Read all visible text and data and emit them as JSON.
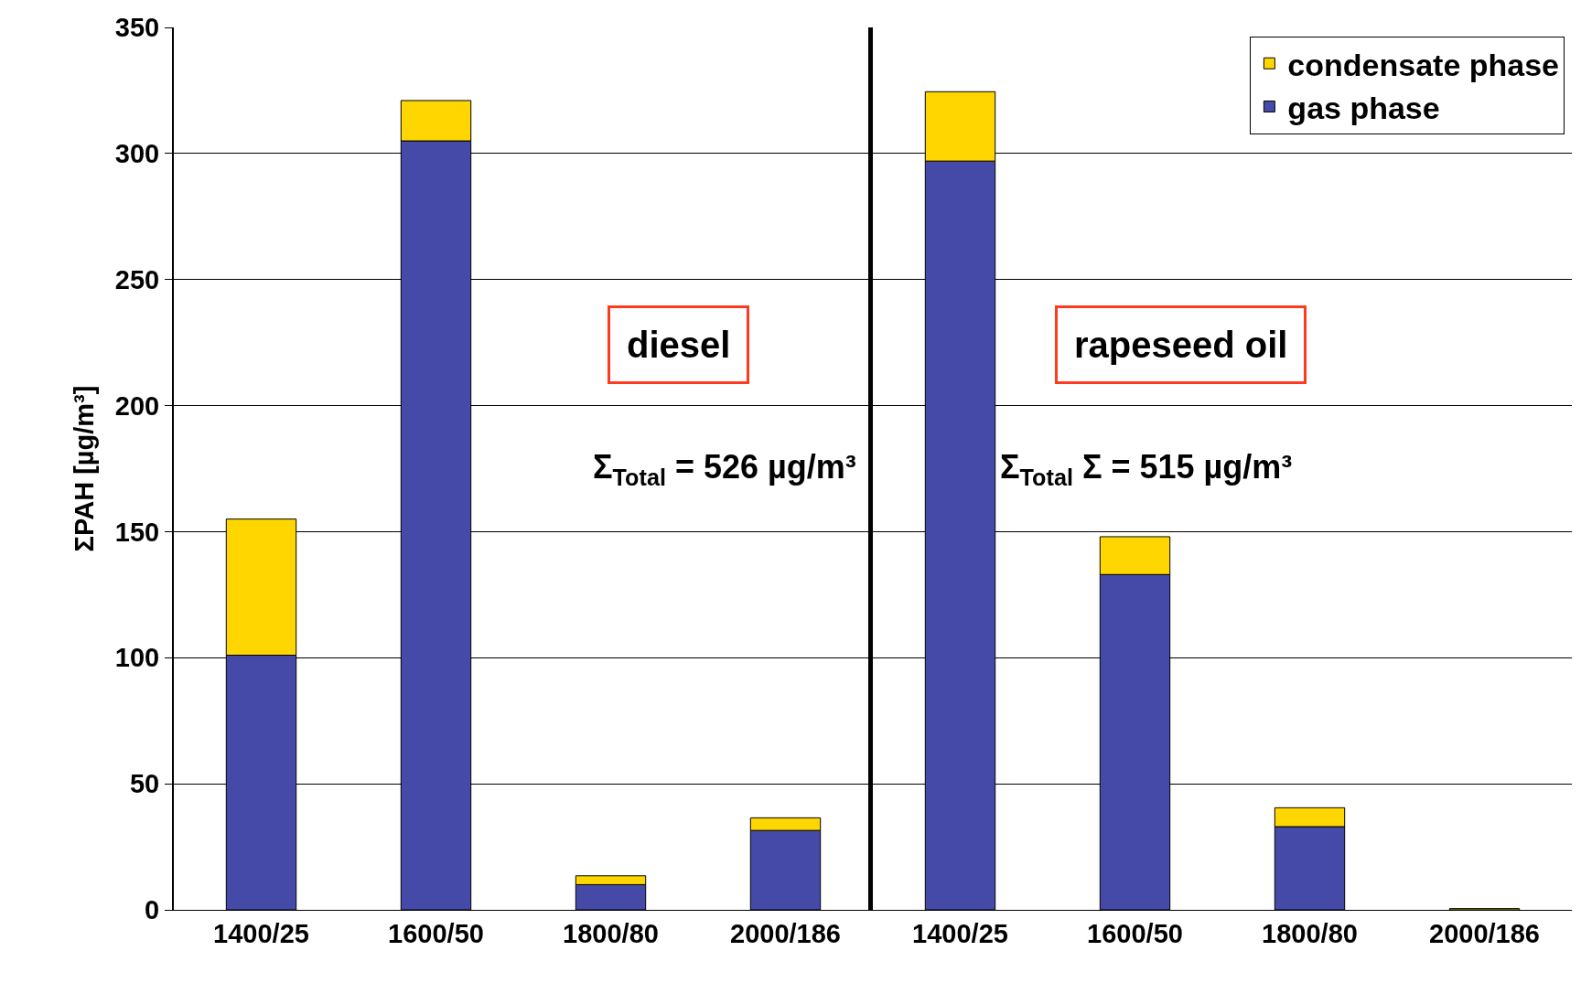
{
  "chart_data": [
    {
      "type": "bar",
      "stacked": true,
      "ylabel": "ΣPAH [µg/m³]",
      "categories": [
        "1400/25",
        "1600/50",
        "1800/80",
        "2000/186"
      ],
      "series": [
        {
          "color": "#4549a8",
          "values": [
            101,
            305,
            10,
            31.5
          ]
        },
        {
          "color": "#ffd600",
          "values": [
            54,
            16,
            3.5,
            5
          ]
        }
      ],
      "ylim": [
        0,
        350
      ],
      "yticks": [
        0,
        50,
        100,
        150,
        200,
        250,
        300,
        350
      ],
      "grid": "y",
      "annotations": [
        "diesel",
        "Σ$_{Total}$ = 526 µg/m³"
      ]
    },
    {
      "type": "bar",
      "stacked": true,
      "categories": [
        "1400/25",
        "1600/50",
        "1800/80",
        "2000/186"
      ],
      "series": [
        {
          "name": "gas phase",
          "color": "#4549a8",
          "values": [
            297,
            133,
            33,
            null
          ]
        },
        {
          "name": "condensate phase",
          "color": "#ffd600",
          "values": [
            27.5,
            15,
            7.5,
            0.5
          ]
        }
      ],
      "ylim": [
        0,
        350
      ],
      "yticks": [
        0,
        50,
        100,
        150,
        200,
        250,
        300,
        350
      ],
      "grid": "y",
      "tick_labels": "x",
      "legend": "top right",
      "annotations": [
        "rapeseed oil",
        "Σ$_{Total}$ Σ = 515 µg/m³"
      ]
    }
  ]
}
